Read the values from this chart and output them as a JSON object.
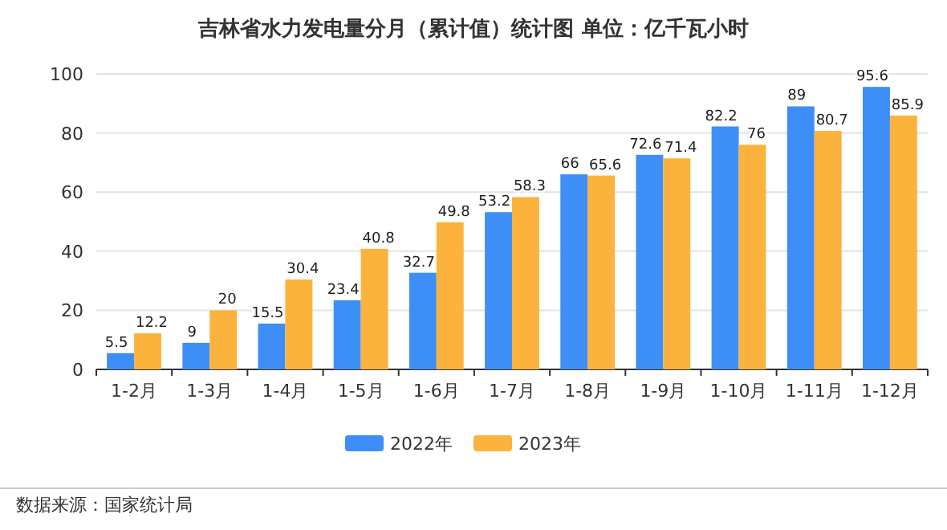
{
  "chart_data": {
    "type": "bar",
    "title": "吉林省水力发电量分月（累计值）统计图 单位：亿千瓦小时",
    "categories": [
      "1-2月",
      "1-3月",
      "1-4月",
      "1-5月",
      "1-6月",
      "1-7月",
      "1-8月",
      "1-9月",
      "1-10月",
      "1-11月",
      "1-12月"
    ],
    "series": [
      {
        "name": "2022年",
        "color": "#3e8ef7",
        "values": [
          5.5,
          9,
          15.5,
          23.4,
          32.7,
          53.2,
          66,
          72.6,
          82.2,
          89,
          95.6
        ]
      },
      {
        "name": "2023年",
        "color": "#fbb33d",
        "values": [
          12.2,
          20,
          30.4,
          40.8,
          49.8,
          58.3,
          65.6,
          71.4,
          76,
          80.7,
          85.9
        ]
      }
    ],
    "ylim": [
      0,
      100
    ],
    "yticks": [
      0,
      20,
      40,
      60,
      80,
      100
    ],
    "grid": "y",
    "legend": "bottom",
    "data_labels": true,
    "annotations": [
      "数据来源：国家统计局"
    ]
  }
}
